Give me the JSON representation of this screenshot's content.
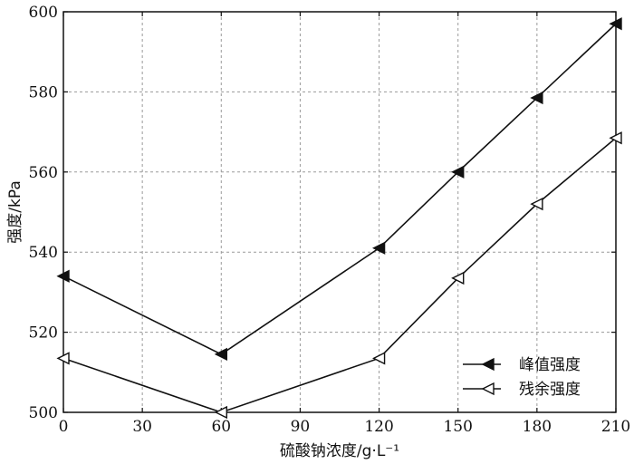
{
  "chart_data": {
    "type": "line",
    "xlabel": "硫酸钠浓度/g·L⁻¹",
    "ylabel": "强度/kPa",
    "x": [
      0,
      60,
      120,
      150,
      180,
      210
    ],
    "xticks": [
      0,
      30,
      60,
      90,
      120,
      150,
      180,
      210
    ],
    "yticks": [
      500,
      520,
      540,
      560,
      580,
      600
    ],
    "xlim": [
      0,
      210
    ],
    "ylim": [
      500,
      600
    ],
    "grid": true,
    "legend_position": "bottom-right",
    "series": [
      {
        "name": "峰值强度",
        "marker": "filled-left-triangle",
        "values": [
          534,
          514.5,
          541,
          560,
          578.5,
          597
        ]
      },
      {
        "name": "残余强度",
        "marker": "open-left-triangle",
        "values": [
          513.5,
          500,
          513.5,
          533.5,
          552,
          568.5
        ]
      }
    ]
  }
}
